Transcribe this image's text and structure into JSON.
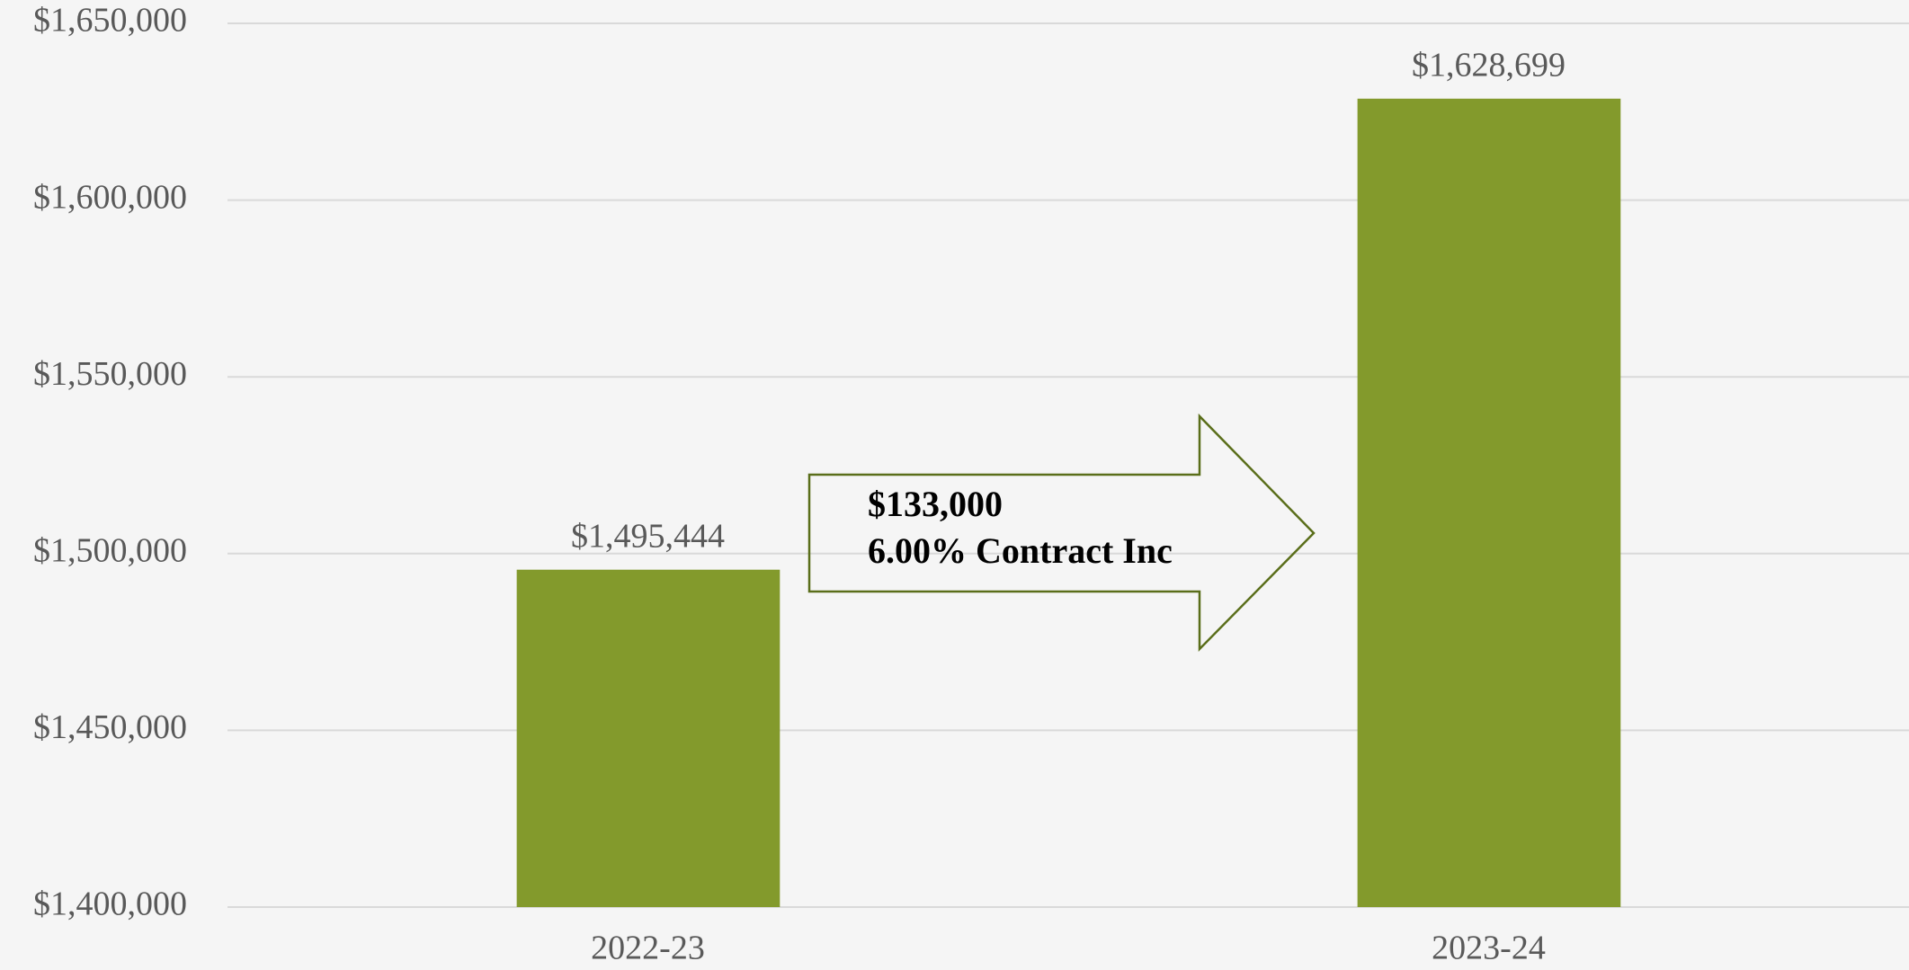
{
  "chart_data": {
    "type": "bar",
    "categories": [
      "2022-23",
      "2023-24"
    ],
    "values": [
      1495444,
      1628699
    ],
    "value_labels": [
      "$1,495,444",
      "$1,628,699"
    ],
    "color": "#839a2c",
    "ylim": [
      1400000,
      1650000
    ],
    "yticks": [
      {
        "value": 1400000,
        "label": "$1,400,000"
      },
      {
        "value": 1450000,
        "label": "$1,450,000"
      },
      {
        "value": 1500000,
        "label": "$1,500,000"
      },
      {
        "value": 1550000,
        "label": "$1,550,000"
      },
      {
        "value": 1600000,
        "label": "$1,600,000"
      },
      {
        "value": 1650000,
        "label": "$1,650,000"
      }
    ],
    "grid": true,
    "annotations": [
      "$133,000",
      "6.00% Contract Inc"
    ]
  }
}
